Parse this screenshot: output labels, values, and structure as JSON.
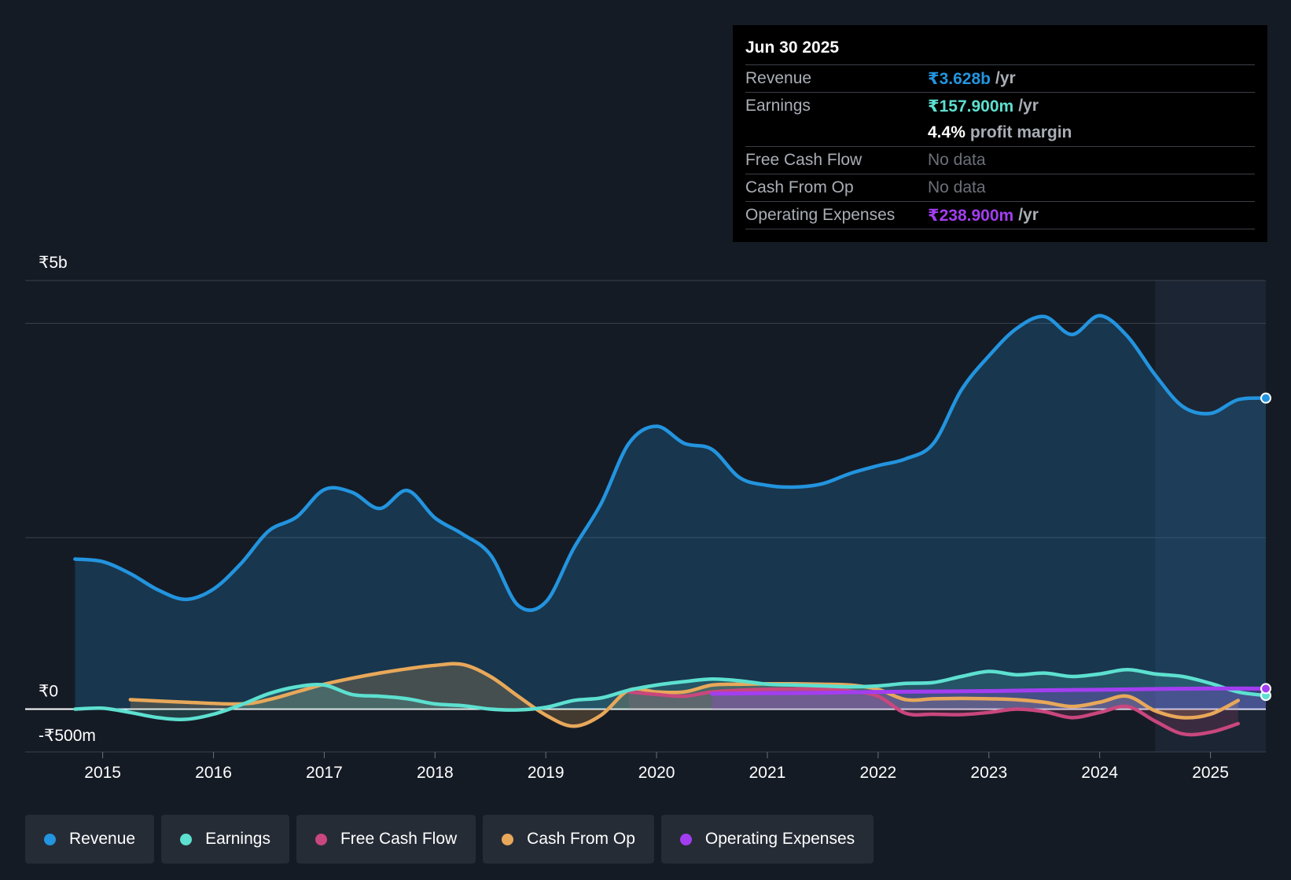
{
  "tooltip": {
    "date": "Jun 30 2025",
    "rows": {
      "revenue": {
        "label": "Revenue",
        "value": "₹3.628b",
        "unit": "/yr"
      },
      "earnings": {
        "label": "Earnings",
        "value": "₹157.900m",
        "unit": "/yr"
      },
      "margin": {
        "value": "4.4%",
        "unit": "profit margin"
      },
      "fcf": {
        "label": "Free Cash Flow",
        "value": "No data"
      },
      "cfo": {
        "label": "Cash From Op",
        "value": "No data"
      },
      "opex": {
        "label": "Operating Expenses",
        "value": "₹238.900m",
        "unit": "/yr"
      }
    }
  },
  "legend": [
    {
      "label": "Revenue",
      "color": "#2394df"
    },
    {
      "label": "Earnings",
      "color": "#5de0d0"
    },
    {
      "label": "Free Cash Flow",
      "color": "#c9477d"
    },
    {
      "label": "Cash From Op",
      "color": "#e8a85a"
    },
    {
      "label": "Operating Expenses",
      "color": "#a33ef0"
    }
  ],
  "chart_data": {
    "type": "area",
    "ylim": [
      -500,
      5000
    ],
    "y_tick_labels": [
      {
        "value": 5000,
        "label": "₹5b"
      },
      {
        "value": 0,
        "label": "₹0"
      },
      {
        "value": -500,
        "label": "-₹500m"
      }
    ],
    "gridlines": [
      5000,
      4500,
      2000,
      0,
      -500
    ],
    "xlim": [
      2014.3,
      2025.5
    ],
    "x_ticks": [
      2015,
      2016,
      2017,
      2018,
      2019,
      2020,
      2021,
      2022,
      2023,
      2024,
      2025
    ],
    "x_tick_labels": [
      "2015",
      "2016",
      "2017",
      "2018",
      "2019",
      "2020",
      "2021",
      "2022",
      "2023",
      "2024",
      "2025"
    ],
    "highlight_from": 2024.5,
    "series": [
      {
        "name": "Revenue",
        "color": "#2394df",
        "points": [
          [
            2014.75,
            1750
          ],
          [
            2015.0,
            1720
          ],
          [
            2015.25,
            1580
          ],
          [
            2015.5,
            1390
          ],
          [
            2015.75,
            1280
          ],
          [
            2016.0,
            1400
          ],
          [
            2016.25,
            1700
          ],
          [
            2016.5,
            2080
          ],
          [
            2016.75,
            2240
          ],
          [
            2017.0,
            2560
          ],
          [
            2017.25,
            2530
          ],
          [
            2017.5,
            2340
          ],
          [
            2017.75,
            2550
          ],
          [
            2018.0,
            2230
          ],
          [
            2018.25,
            2040
          ],
          [
            2018.5,
            1800
          ],
          [
            2018.75,
            1210
          ],
          [
            2019.0,
            1250
          ],
          [
            2019.25,
            1870
          ],
          [
            2019.5,
            2400
          ],
          [
            2019.75,
            3100
          ],
          [
            2020.0,
            3300
          ],
          [
            2020.25,
            3100
          ],
          [
            2020.5,
            3030
          ],
          [
            2020.75,
            2700
          ],
          [
            2021.0,
            2610
          ],
          [
            2021.25,
            2590
          ],
          [
            2021.5,
            2630
          ],
          [
            2021.75,
            2750
          ],
          [
            2022.0,
            2840
          ],
          [
            2022.25,
            2920
          ],
          [
            2022.5,
            3100
          ],
          [
            2022.75,
            3720
          ],
          [
            2023.0,
            4120
          ],
          [
            2023.25,
            4440
          ],
          [
            2023.5,
            4580
          ],
          [
            2023.75,
            4370
          ],
          [
            2024.0,
            4590
          ],
          [
            2024.25,
            4350
          ],
          [
            2024.5,
            3900
          ],
          [
            2024.75,
            3530
          ],
          [
            2025.0,
            3450
          ],
          [
            2025.25,
            3610
          ],
          [
            2025.5,
            3628
          ]
        ]
      },
      {
        "name": "Earnings",
        "color": "#5de0d0",
        "points": [
          [
            2014.75,
            0
          ],
          [
            2015.0,
            10
          ],
          [
            2015.25,
            -40
          ],
          [
            2015.5,
            -100
          ],
          [
            2015.75,
            -120
          ],
          [
            2016.0,
            -60
          ],
          [
            2016.25,
            50
          ],
          [
            2016.5,
            180
          ],
          [
            2016.75,
            260
          ],
          [
            2017.0,
            280
          ],
          [
            2017.25,
            170
          ],
          [
            2017.5,
            150
          ],
          [
            2017.75,
            120
          ],
          [
            2018.0,
            60
          ],
          [
            2018.25,
            40
          ],
          [
            2018.5,
            0
          ],
          [
            2018.75,
            -10
          ],
          [
            2019.0,
            20
          ],
          [
            2019.25,
            100
          ],
          [
            2019.5,
            130
          ],
          [
            2019.75,
            220
          ],
          [
            2020.0,
            280
          ],
          [
            2020.25,
            320
          ],
          [
            2020.5,
            350
          ],
          [
            2020.75,
            330
          ],
          [
            2021.0,
            290
          ],
          [
            2021.25,
            280
          ],
          [
            2021.5,
            270
          ],
          [
            2021.75,
            260
          ],
          [
            2022.0,
            270
          ],
          [
            2022.25,
            300
          ],
          [
            2022.5,
            310
          ],
          [
            2022.75,
            380
          ],
          [
            2023.0,
            440
          ],
          [
            2023.25,
            400
          ],
          [
            2023.5,
            420
          ],
          [
            2023.75,
            380
          ],
          [
            2024.0,
            410
          ],
          [
            2024.25,
            460
          ],
          [
            2024.5,
            410
          ],
          [
            2024.75,
            380
          ],
          [
            2025.0,
            300
          ],
          [
            2025.25,
            200
          ],
          [
            2025.5,
            157.9
          ]
        ]
      },
      {
        "name": "Free Cash Flow",
        "color": "#c9477d",
        "points": [
          [
            2019.75,
            200
          ],
          [
            2020.0,
            170
          ],
          [
            2020.25,
            150
          ],
          [
            2020.5,
            200
          ],
          [
            2020.75,
            220
          ],
          [
            2021.0,
            230
          ],
          [
            2021.25,
            235
          ],
          [
            2021.5,
            230
          ],
          [
            2021.75,
            210
          ],
          [
            2022.0,
            150
          ],
          [
            2022.25,
            -50
          ],
          [
            2022.5,
            -60
          ],
          [
            2022.75,
            -65
          ],
          [
            2023.0,
            -40
          ],
          [
            2023.25,
            0
          ],
          [
            2023.5,
            -30
          ],
          [
            2023.75,
            -100
          ],
          [
            2024.0,
            -40
          ],
          [
            2024.25,
            30
          ],
          [
            2024.5,
            -140
          ],
          [
            2024.75,
            -290
          ],
          [
            2025.0,
            -270
          ],
          [
            2025.25,
            -170
          ]
        ]
      },
      {
        "name": "Cash From Op",
        "color": "#e8a85a",
        "points": [
          [
            2015.25,
            110
          ],
          [
            2015.75,
            80
          ],
          [
            2016.25,
            60
          ],
          [
            2016.5,
            110
          ],
          [
            2016.75,
            200
          ],
          [
            2017.0,
            290
          ],
          [
            2017.25,
            360
          ],
          [
            2017.5,
            420
          ],
          [
            2017.75,
            470
          ],
          [
            2018.0,
            510
          ],
          [
            2018.25,
            520
          ],
          [
            2018.5,
            380
          ],
          [
            2018.75,
            150
          ],
          [
            2019.0,
            -70
          ],
          [
            2019.25,
            -200
          ],
          [
            2019.5,
            -70
          ],
          [
            2019.75,
            220
          ],
          [
            2020.0,
            200
          ],
          [
            2020.25,
            200
          ],
          [
            2020.5,
            280
          ],
          [
            2020.75,
            290
          ],
          [
            2021.0,
            295
          ],
          [
            2021.25,
            295
          ],
          [
            2021.5,
            290
          ],
          [
            2021.75,
            280
          ],
          [
            2022.0,
            230
          ],
          [
            2022.25,
            110
          ],
          [
            2022.5,
            120
          ],
          [
            2022.75,
            125
          ],
          [
            2023.0,
            120
          ],
          [
            2023.25,
            110
          ],
          [
            2023.5,
            80
          ],
          [
            2023.75,
            30
          ],
          [
            2024.0,
            80
          ],
          [
            2024.25,
            150
          ],
          [
            2024.5,
            -20
          ],
          [
            2024.75,
            -100
          ],
          [
            2025.0,
            -60
          ],
          [
            2025.25,
            100
          ]
        ]
      },
      {
        "name": "Operating Expenses",
        "color": "#a33ef0",
        "points": [
          [
            2020.5,
            180
          ],
          [
            2021.0,
            185
          ],
          [
            2021.5,
            190
          ],
          [
            2022.0,
            200
          ],
          [
            2022.5,
            205
          ],
          [
            2023.0,
            210
          ],
          [
            2023.5,
            220
          ],
          [
            2024.0,
            225
          ],
          [
            2024.5,
            235
          ],
          [
            2025.0,
            240
          ],
          [
            2025.5,
            238.9
          ]
        ]
      }
    ]
  }
}
